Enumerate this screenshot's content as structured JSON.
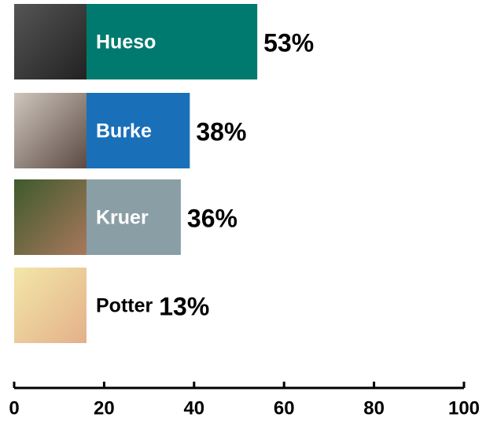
{
  "chart_data": {
    "type": "bar",
    "orientation": "horizontal",
    "categories": [
      "Hueso",
      "Burke",
      "Kruer",
      "Potter"
    ],
    "values": [
      53,
      38,
      36,
      13
    ],
    "value_labels": [
      "53%",
      "38%",
      "36%",
      "13%"
    ],
    "colors": [
      "#007a6e",
      "#1a70b8",
      "#8a9ea6",
      "#8a9ea6"
    ],
    "xlim": [
      0,
      100
    ],
    "xticks": [
      0,
      20,
      40,
      60,
      80,
      100
    ]
  }
}
